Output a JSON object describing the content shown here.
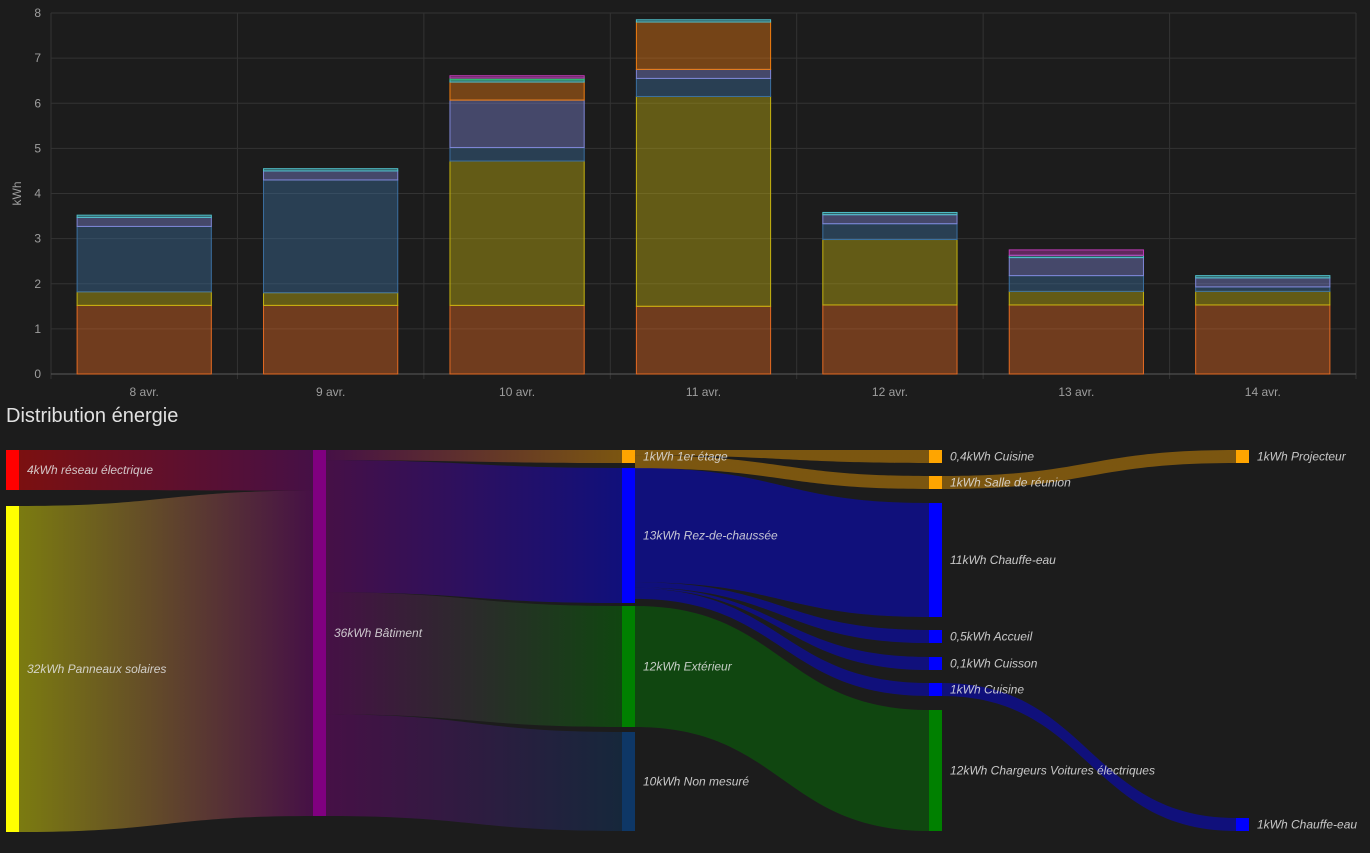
{
  "section_title": "Distribution énergie",
  "colors": {
    "background": "#1c1c1c",
    "grid": "#333333",
    "axis_text": "#9e9e9e"
  },
  "chart_data": [
    {
      "type": "bar",
      "stacked": true,
      "ylabel": "kWh",
      "ylim": [
        0,
        8
      ],
      "yticks": [
        "0",
        "1",
        "2",
        "3",
        "4",
        "5",
        "6",
        "7",
        "8"
      ],
      "categories": [
        "8 avr.",
        "9 avr.",
        "10 avr.",
        "11 avr.",
        "12 avr.",
        "13 avr.",
        "14 avr."
      ],
      "grid": true,
      "series": [
        {
          "color": "#e46a22",
          "values": [
            1.52,
            1.52,
            1.52,
            1.5,
            1.53,
            1.53,
            1.53
          ]
        },
        {
          "color": "#c5b30f",
          "values": [
            0.3,
            0.28,
            3.2,
            4.65,
            1.45,
            0.3,
            0.3
          ]
        },
        {
          "color": "#3b6fa0",
          "values": [
            1.45,
            2.5,
            0.3,
            0.4,
            0.35,
            0.35,
            0.1
          ]
        },
        {
          "color": "#7f86d6",
          "values": [
            0.2,
            0.2,
            1.05,
            0.2,
            0.2,
            0.4,
            0.2
          ]
        },
        {
          "color": "#f07d10",
          "values": [
            0.0,
            0.0,
            0.4,
            1.05,
            0.0,
            0.0,
            0.0
          ]
        },
        {
          "color": "#4fbfc9",
          "values": [
            0.05,
            0.05,
            0.05,
            0.05,
            0.05,
            0.05,
            0.05
          ]
        },
        {
          "color": "#2ecc71",
          "values": [
            0.0,
            0.0,
            0.04,
            0.0,
            0.0,
            0.0,
            0.0
          ]
        },
        {
          "color": "#c03ab8",
          "values": [
            0.0,
            0.0,
            0.05,
            0.0,
            0.0,
            0.12,
            0.0
          ]
        }
      ]
    },
    {
      "type": "sankey",
      "title": "Distribution énergie",
      "nodes": [
        {
          "id": "reseau",
          "label": "4kWh réseau électrique",
          "value": 4,
          "color": "#ff0000"
        },
        {
          "id": "solaire",
          "label": "32kWh Panneaux solaires",
          "value": 32,
          "color": "#ffff00"
        },
        {
          "id": "batiment",
          "label": "36kWh Bâtiment",
          "value": 36,
          "color": "#800080"
        },
        {
          "id": "etage1",
          "label": "1kWh 1er étage",
          "value": 1,
          "color": "#ffa500"
        },
        {
          "id": "rdc",
          "label": "13kWh Rez-de-chaussée",
          "value": 13,
          "color": "#0000ff"
        },
        {
          "id": "exterieur",
          "label": "12kWh Extérieur",
          "value": 12,
          "color": "#008000"
        },
        {
          "id": "nonmesure",
          "label": "10kWh Non mesuré",
          "value": 10,
          "color": "#0e3766"
        },
        {
          "id": "cuisine1",
          "label": "0,4kWh Cuisine",
          "value": 0.4,
          "color": "#ffa500"
        },
        {
          "id": "reunion",
          "label": "1kWh Salle de réunion",
          "value": 1,
          "color": "#ffa500"
        },
        {
          "id": "chauffeeau1",
          "label": "11kWh Chauffe-eau",
          "value": 11,
          "color": "#0000ff"
        },
        {
          "id": "accueil",
          "label": "0,5kWh Accueil",
          "value": 0.5,
          "color": "#0000ff"
        },
        {
          "id": "cuisson",
          "label": "0,1kWh Cuisson",
          "value": 0.1,
          "color": "#0000ff"
        },
        {
          "id": "cuisine2",
          "label": "1kWh Cuisine",
          "value": 1,
          "color": "#0000ff"
        },
        {
          "id": "chargeurs",
          "label": "12kWh Chargeurs Voitures électriques",
          "value": 12,
          "color": "#008000"
        },
        {
          "id": "projecteur",
          "label": "1kWh Projecteur",
          "value": 1,
          "color": "#ffa500"
        },
        {
          "id": "chauffeeau2",
          "label": "1kWh Chauffe-eau",
          "value": 1,
          "color": "#0000ff"
        }
      ],
      "links": [
        {
          "source": "reseau",
          "target": "batiment",
          "value": 4
        },
        {
          "source": "solaire",
          "target": "batiment",
          "value": 32
        },
        {
          "source": "batiment",
          "target": "etage1",
          "value": 1
        },
        {
          "source": "batiment",
          "target": "rdc",
          "value": 13
        },
        {
          "source": "batiment",
          "target": "exterieur",
          "value": 12
        },
        {
          "source": "batiment",
          "target": "nonmesure",
          "value": 10
        },
        {
          "source": "etage1",
          "target": "cuisine1",
          "value": 0.4
        },
        {
          "source": "etage1",
          "target": "reunion",
          "value": 1
        },
        {
          "source": "rdc",
          "target": "chauffeeau1",
          "value": 11
        },
        {
          "source": "rdc",
          "target": "accueil",
          "value": 0.5
        },
        {
          "source": "rdc",
          "target": "cuisson",
          "value": 0.1
        },
        {
          "source": "rdc",
          "target": "cuisine2",
          "value": 1
        },
        {
          "source": "exterieur",
          "target": "chargeurs",
          "value": 12
        },
        {
          "source": "reunion",
          "target": "projecteur",
          "value": 1
        },
        {
          "source": "cuisine2",
          "target": "chauffeeau2",
          "value": 1
        }
      ]
    }
  ]
}
